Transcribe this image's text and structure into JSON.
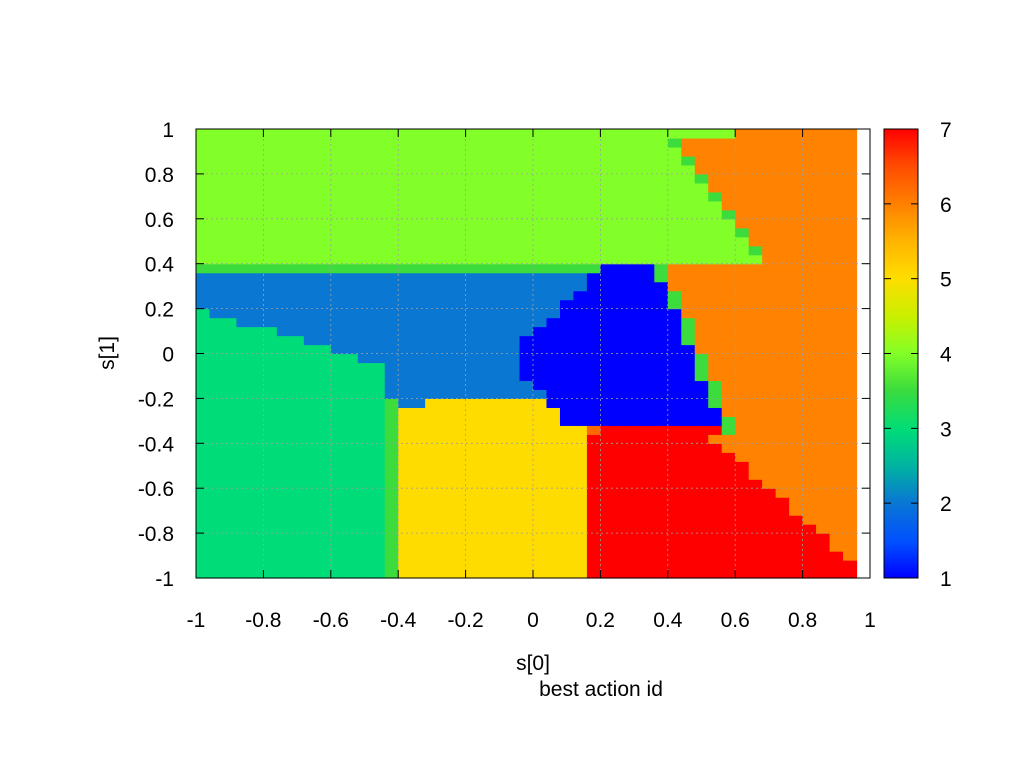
{
  "chart_data": {
    "type": "heatmap",
    "title": "",
    "xlabel": "s[0]",
    "ylabel": "s[1]",
    "colorbar_label": "best action id",
    "xlim": [
      -1,
      1
    ],
    "ylim": [
      -1,
      1
    ],
    "xticks": [
      "-1",
      "-0.8",
      "-0.6",
      "-0.4",
      "-0.2",
      "0",
      "0.2",
      "0.4",
      "0.6",
      "0.8",
      "1"
    ],
    "yticks": [
      "-1",
      "-0.8",
      "-0.6",
      "-0.4",
      "-0.2",
      "0",
      "0.2",
      "0.4",
      "0.6",
      "0.8",
      "1"
    ],
    "colorbar_ticks": [
      "1",
      "2",
      "3",
      "4",
      "5",
      "6",
      "7"
    ],
    "colorbar_range": [
      1,
      7
    ],
    "grid": true,
    "grid_step": 0.04,
    "region_values": {
      "upper_band_green": 4,
      "left_middle_blue": 2,
      "center_dark_blue": 1,
      "lower_left_teal": 3,
      "lower_center_yellow": 5,
      "right_orange": 6,
      "lower_right_red": 7
    },
    "palette": {
      "1": "#0000ff",
      "2": "#0a78d2",
      "3": "#00dc78",
      "3.5": "#3cdc3c",
      "4": "#82ff28",
      "5": "#ffdc00",
      "6": "#ff8200",
      "6.5": "#ff6a00",
      "7": "#ff0000"
    }
  }
}
